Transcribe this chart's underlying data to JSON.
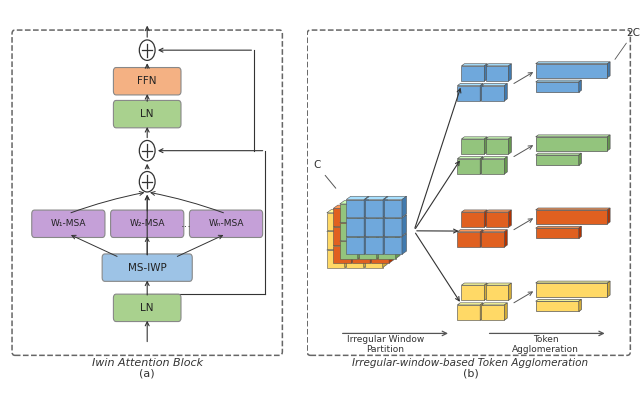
{
  "fig_width": 6.4,
  "fig_height": 3.93,
  "bg_color": "#ffffff",
  "panel_a": {
    "title": "Iwin Attention Block",
    "label": "(a)",
    "box_ffn": {
      "label": "FFN",
      "color": "#F4B183"
    },
    "box_ln1": {
      "label": "LN",
      "color": "#A9D18E"
    },
    "box_ln2": {
      "label": "LN",
      "color": "#A9D18E"
    },
    "box_msiwp": {
      "label": "MS-IWP",
      "color": "#9DC3E6"
    },
    "box_w1": {
      "label": "W₁-MSA",
      "color": "#C5A0D8"
    },
    "box_w2": {
      "label": "W₂-MSA",
      "color": "#C5A0D8"
    },
    "box_wn": {
      "label": "Wₙ-MSA",
      "color": "#C5A0D8"
    }
  },
  "panel_b": {
    "title": "Irregular-window-based Token Agglomeration",
    "label": "(b)",
    "label_partition": "Irregular Window\nPartition",
    "label_agglomeration": "Token\nAgglomeration",
    "label_c": "C",
    "label_2c": "2C",
    "blue": "#6FA8DC",
    "green": "#93C47D",
    "orange": "#E06020",
    "yellow": "#FFD966"
  },
  "dashed_color": "#666666",
  "arrow_color": "#333333",
  "text_color": "#333333"
}
